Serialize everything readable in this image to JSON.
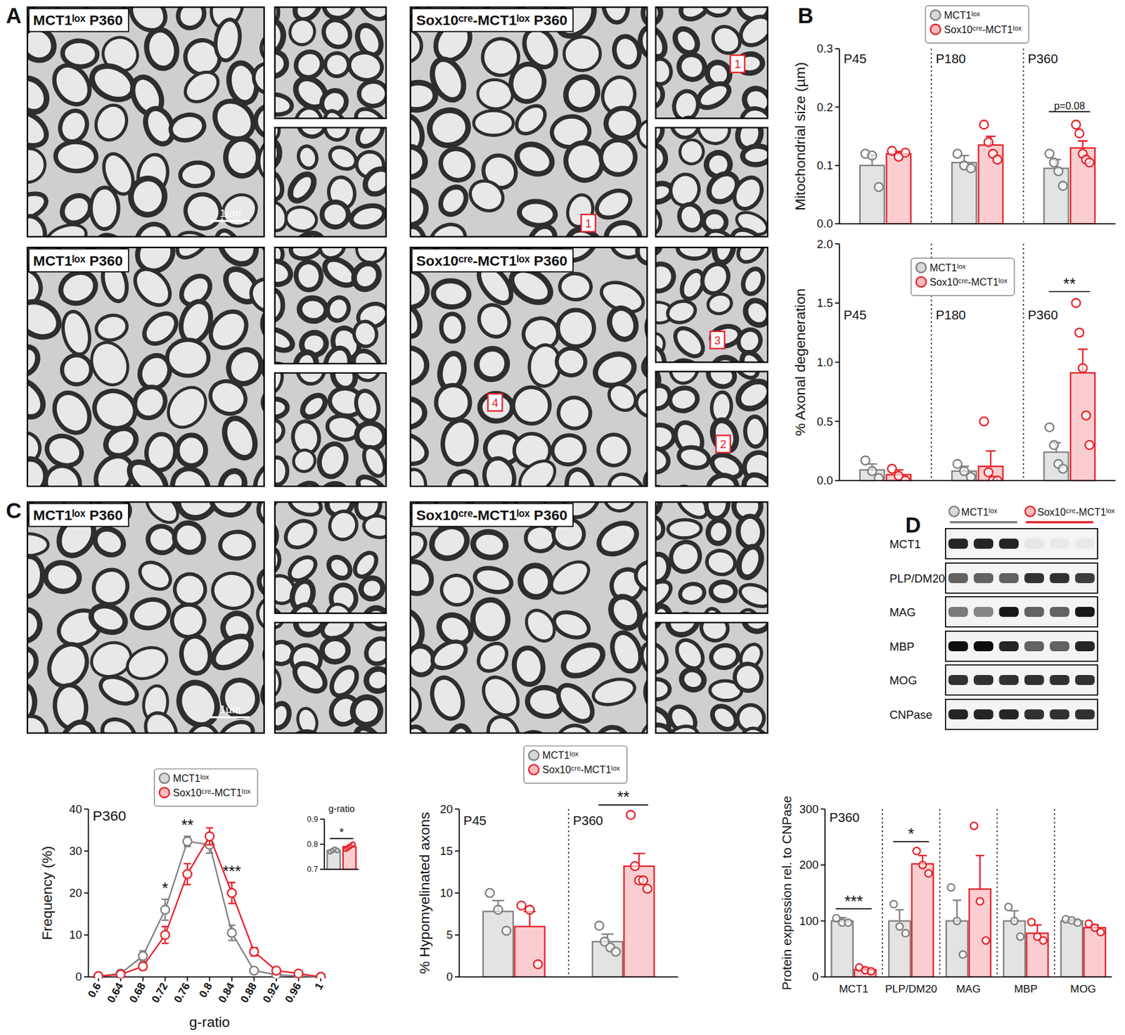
{
  "figure": {
    "panel_letters": [
      "A",
      "B",
      "C",
      "D"
    ],
    "em_panels": [
      {
        "label": "MCT1ˡᵒˣ P360",
        "scale_bar": "1µm",
        "markers": []
      },
      {
        "label": "Sox10ᶜʳᵉ-MCT1ˡᵒˣ P360",
        "markers": [
          "1",
          "1"
        ]
      },
      {
        "label": "MCT1ˡᵒˣ P360",
        "markers": []
      },
      {
        "label": "Sox10ᶜʳᵉ-MCT1ˡᵒˣ P360",
        "markers": [
          "4",
          "3",
          "2"
        ]
      },
      {
        "label": "MCT1ˡᵒˣ P360",
        "scale_bar": "1µm",
        "markers": []
      },
      {
        "label": "Sox10ᶜʳᵉ-MCT1ˡᵒˣ P360",
        "markers": []
      }
    ],
    "blot": {
      "groups": [
        {
          "name": "MCT1ˡᵒˣ",
          "color": "#7f7f7f"
        },
        {
          "name": "Sox10ᶜʳᵉ-MCT1ˡᵒˣ",
          "color": "#e8202a"
        }
      ],
      "rows": [
        "MCT1",
        "PLP/DM20",
        "MAG",
        "MBP",
        "MOG",
        "CNPase"
      ]
    }
  },
  "chart_data": [
    {
      "type": "bar",
      "y_label": "Mitochondrial size (µm)",
      "categories": [
        "P45",
        "P180",
        "P360"
      ],
      "series": [
        {
          "name": "MCT1ˡᵒˣ",
          "color": "#7f7f7f",
          "values": [
            0.1,
            0.105,
            0.095
          ],
          "errors": [
            0.018,
            0.012,
            0.015
          ],
          "points": [
            [
              0.12,
              0.117,
              0.063
            ],
            [
              0.12,
              0.1,
              0.095
            ],
            [
              0.12,
              0.105,
              0.09,
              0.065
            ]
          ]
        },
        {
          "name": "Sox10ᶜʳᵉ-MCT1ˡᵒˣ",
          "color": "#e8202a",
          "values": [
            0.12,
            0.135,
            0.13
          ],
          "errors": [
            0.004,
            0.015,
            0.012
          ],
          "points": [
            [
              0.125,
              0.115,
              0.122
            ],
            [
              0.17,
              0.14,
              0.12,
              0.11
            ],
            [
              0.17,
              0.155,
              0.12,
              0.11,
              0.105
            ]
          ]
        }
      ],
      "ylim": [
        0,
        0.3
      ],
      "yticks": [
        {
          "value": 0,
          "label": "0.0"
        },
        0.1,
        0.2,
        0.3
      ],
      "legend": "top",
      "annotations": [
        {
          "text": "p=0.08",
          "category": "P360"
        }
      ]
    },
    {
      "type": "bar",
      "y_label": "% Axonal degeneration",
      "categories": [
        "P45",
        "P180",
        "P360"
      ],
      "series": [
        {
          "name": "MCT1ˡᵒˣ",
          "color": "#7f7f7f",
          "values": [
            0.09,
            0.08,
            0.24
          ],
          "errors": [
            0.05,
            0.04,
            0.08
          ],
          "points": [
            [
              0.17,
              0.08,
              0.02
            ],
            [
              0.14,
              0.08,
              0.03
            ],
            [
              0.45,
              0.3,
              0.14,
              0.1
            ]
          ]
        },
        {
          "name": "Sox10ᶜʳᵉ-MCT1ˡᵒˣ",
          "color": "#e8202a",
          "values": [
            0.05,
            0.12,
            0.91
          ],
          "errors": [
            0.04,
            0.13,
            0.2
          ],
          "points": [
            [
              0.1,
              0.04,
              0
            ],
            [
              0.5,
              0.07,
              0,
              0
            ],
            [
              1.5,
              1.25,
              0.95,
              0.55,
              0.3
            ]
          ]
        }
      ],
      "ylim": [
        0,
        2
      ],
      "yticks": [
        {
          "value": 0,
          "label": "0.0"
        },
        0.5,
        {
          "value": 1,
          "label": "1.0"
        },
        1.5,
        {
          "value": 2,
          "label": "2.0"
        }
      ],
      "legend": "top",
      "annotations": [
        {
          "text": "**",
          "category": "P360"
        }
      ]
    },
    {
      "type": "line",
      "title": "P360",
      "x_label": "g-ratio",
      "y_label": "Frequency (%)",
      "marker": "circle",
      "x": [
        0.6,
        0.64,
        0.68,
        0.72,
        0.76,
        0.8,
        0.84,
        0.88,
        0.92,
        0.96,
        1
      ],
      "series": [
        {
          "name": "MCT1ˡᵒˣ",
          "color": "#7f7f7f",
          "values": [
            0.1,
            0.8,
            5,
            16,
            32.3,
            31.5,
            10.5,
            1.5,
            0.5,
            0.2,
            0
          ],
          "errors": [
            0.1,
            0.3,
            1.2,
            2.5,
            1.2,
            2,
            1.8,
            0.3,
            0.2,
            0.1,
            0
          ]
        },
        {
          "name": "Sox10ᶜʳᵉ-MCT1ˡᵒˣ",
          "color": "#e8202a",
          "values": [
            0.2,
            0.6,
            2.5,
            10,
            24.5,
            33.5,
            20,
            6,
            1.5,
            0.8,
            0
          ],
          "errors": [
            0.1,
            0.3,
            0.8,
            2,
            2.5,
            2,
            2.5,
            1,
            0.5,
            0.3,
            0
          ]
        }
      ],
      "xlim": [
        0.6,
        1
      ],
      "xticks": [
        0.6,
        0.64,
        0.68,
        0.72,
        0.76,
        0.8,
        0.84,
        0.88,
        0.92,
        0.96,
        1
      ],
      "ylim": [
        0,
        40
      ],
      "yticks": [
        0,
        10,
        20,
        30,
        40
      ],
      "legend": "top",
      "annotations": [
        {
          "text": "*",
          "x": 0.72
        },
        {
          "text": "**",
          "x": 0.76
        },
        {
          "text": "***",
          "x": 0.84
        }
      ]
    },
    {
      "type": "bar",
      "title": "g-ratio",
      "categories": [
        null
      ],
      "series": [
        {
          "color": "#7f7f7f",
          "values": [
            0.775
          ],
          "errors": [
            0.005
          ],
          "points": [
            [
              0.77,
              0.775,
              0.78,
              0.775
            ]
          ]
        },
        {
          "color": "#e8202a",
          "values": [
            0.79
          ],
          "errors": [
            0.005
          ],
          "points": [
            [
              0.78,
              0.785,
              0.79,
              0.795,
              0.8
            ]
          ]
        }
      ],
      "ylim": [
        0.7,
        0.9
      ],
      "yticks": [
        0.7,
        0.8,
        0.9
      ],
      "annotations": [
        {
          "text": "*"
        }
      ]
    },
    {
      "type": "bar",
      "y_label": "% Hypomyelinated axons",
      "categories": [
        "P45",
        "P360"
      ],
      "series": [
        {
          "name": "MCT1ˡᵒˣ",
          "color": "#7f7f7f",
          "values": [
            7.8,
            4.2
          ],
          "errors": [
            1.3,
            0.9
          ],
          "points": [
            [
              10,
              8,
              5.5
            ],
            [
              6.1,
              4.2,
              3.5,
              3
            ]
          ]
        },
        {
          "name": "Sox10ᶜʳᵉ-MCT1ˡᵒˣ",
          "color": "#e8202a",
          "values": [
            6,
            13.2
          ],
          "errors": [
            1.8,
            1.5
          ],
          "points": [
            [
              8.5,
              8,
              1.5
            ],
            [
              19.3,
              13.2,
              11.5,
              11.5,
              10.5
            ]
          ]
        }
      ],
      "ylim": [
        0,
        20
      ],
      "yticks": [
        0,
        5,
        10,
        15,
        20
      ],
      "legend": "top",
      "annotations": [
        {
          "text": "**",
          "category": "P360"
        }
      ]
    },
    {
      "type": "bar",
      "title": "P360",
      "y_label": "Protein expression rel. to CNPase",
      "categories": [
        "MCT1",
        "PLP/DM20",
        "MAG",
        "MBP",
        "MOG"
      ],
      "series": [
        {
          "color": "#7f7f7f",
          "values": [
            100,
            100,
            100,
            100,
            100
          ],
          "errors": [
            6,
            20,
            37,
            18,
            3
          ],
          "points": [
            [
              105,
              97,
              97
            ],
            [
              130,
              90,
              78
            ],
            [
              160,
              100,
              40
            ],
            [
              125,
              100,
              72
            ],
            [
              103,
              101,
              97
            ]
          ]
        },
        {
          "color": "#e8202a",
          "values": [
            13,
            202,
            157,
            78,
            88
          ],
          "errors": [
            3,
            15,
            60,
            15,
            5
          ],
          "points": [
            [
              17,
              12,
              10
            ],
            [
              225,
              200,
              185
            ],
            [
              270,
              135,
              65
            ],
            [
              98,
              72,
              65
            ],
            [
              95,
              88,
              80
            ]
          ]
        }
      ],
      "ylim": [
        0,
        300
      ],
      "yticks": [
        0,
        100,
        200,
        300
      ],
      "annotations": [
        {
          "text": "***",
          "category": "MCT1"
        },
        {
          "text": "*",
          "category": "PLP/DM20"
        }
      ]
    }
  ]
}
